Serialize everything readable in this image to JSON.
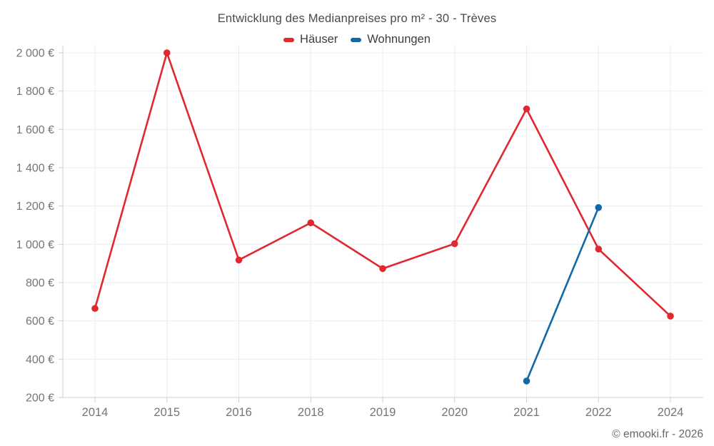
{
  "title": "Entwicklung des Medianpreises pro m² - 30 - Trèves",
  "footer": "© emooki.fr - 2026",
  "legend": [
    {
      "label": "Häuser",
      "color": "#e0282e"
    },
    {
      "label": "Wohnungen",
      "color": "#1269a8"
    }
  ],
  "colors": {
    "haeuser_red": "#e0282e",
    "wohnungen_blue": "#1269a8",
    "grid": "#ededed",
    "axis": "#cfcfcf",
    "tick_text": "#757575",
    "title_text": "#4a4a4a",
    "legend_text": "#3d3d3d",
    "footer_text": "#666666",
    "background": "#ffffff"
  },
  "chart_data": {
    "type": "line",
    "title": "Entwicklung des Medianpreises pro m² - 30 - Trèves",
    "xlabel": "",
    "ylabel": "",
    "categories": [
      "2014",
      "2015",
      "2016",
      "2018",
      "2019",
      "2020",
      "2021",
      "2022",
      "2024"
    ],
    "series": [
      {
        "name": "Häuser",
        "color": "#e0282e",
        "values": [
          665,
          2000,
          918,
          1112,
          873,
          1003,
          1707,
          975,
          625
        ]
      },
      {
        "name": "Wohnungen",
        "color": "#1269a8",
        "values": [
          null,
          null,
          null,
          null,
          null,
          null,
          286,
          1192,
          null
        ]
      }
    ],
    "ylim": [
      200,
      2000
    ],
    "ytick_step": 200,
    "ytick_labels": [
      "200 €",
      "400 €",
      "600 €",
      "800 €",
      "1 000 €",
      "1 200 €",
      "1 400 €",
      "1 600 €",
      "1 800 €",
      "2 000 €"
    ],
    "ytick_suffix": " €",
    "grid": true,
    "legend_position": "top",
    "marker": "circle"
  }
}
